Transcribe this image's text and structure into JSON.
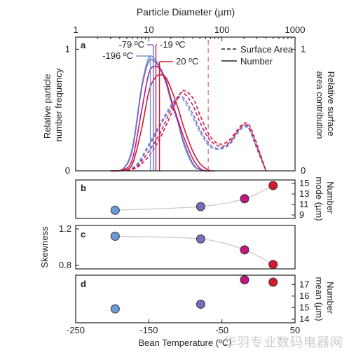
{
  "watermark": "华羽专业数码电器网",
  "chart_data": [
    {
      "type": "line",
      "panel_label": "a",
      "title": "",
      "top_axis": {
        "label": "Particle Diameter (µm)",
        "scale": "log",
        "range": [
          1,
          1000
        ],
        "ticks": [
          1,
          10,
          100,
          1000
        ],
        "tick_labels": [
          "1",
          "10",
          "100",
          "1000"
        ]
      },
      "left_axis": {
        "label_lines": [
          "Relative particle",
          "number frequency"
        ],
        "range": [
          0,
          1.1
        ],
        "ticks": [
          0,
          1
        ],
        "tick_labels": [
          "0",
          "1"
        ]
      },
      "right_axis": {
        "label_lines": [
          "Relative surface",
          "area contribution"
        ],
        "tick_labels": [
          "1",
          "0"
        ]
      },
      "legend": {
        "position": "top-right",
        "entries": [
          {
            "label": "Surface Area",
            "style": "dashed"
          },
          {
            "label": "Number",
            "style": "solid"
          }
        ]
      },
      "mode_markers": [
        {
          "label": "-79 ºC",
          "diameter": 11.5,
          "color": "#7b6bb8"
        },
        {
          "label": "-196 ºC",
          "diameter": 10.5,
          "color": "#6a9ad6"
        },
        {
          "label": "-19 ºC",
          "diameter": 12.5,
          "color": "#c0187e"
        },
        {
          "label": "20 ºC",
          "diameter": 14.0,
          "color": "#d41a2a"
        }
      ],
      "reference_line": {
        "diameter": 65,
        "style": "dashed",
        "color": "#e06aa0"
      },
      "series": [
        {
          "kind": "number",
          "color": "#6a9ad6",
          "x": [
            3,
            4.5,
            6,
            8,
            10,
            12,
            14,
            17,
            20,
            25,
            30,
            40,
            50,
            60,
            70
          ],
          "y": [
            0,
            0.02,
            0.2,
            0.7,
            0.93,
            0.92,
            0.86,
            0.75,
            0.6,
            0.4,
            0.22,
            0.05,
            0.01,
            0,
            0
          ]
        },
        {
          "kind": "number",
          "color": "#7b6bb8",
          "x": [
            3,
            4.5,
            6,
            8,
            10,
            12,
            14,
            17,
            20,
            25,
            30,
            40,
            50,
            60,
            70
          ],
          "y": [
            0,
            0.02,
            0.18,
            0.68,
            0.9,
            0.9,
            0.85,
            0.73,
            0.58,
            0.4,
            0.24,
            0.06,
            0.01,
            0,
            0
          ]
        },
        {
          "kind": "number",
          "color": "#c0187e",
          "x": [
            3,
            4.5,
            6,
            8,
            10,
            12,
            14,
            17,
            20,
            25,
            30,
            40,
            50,
            60,
            70
          ],
          "y": [
            0,
            0.01,
            0.1,
            0.5,
            0.8,
            0.86,
            0.84,
            0.75,
            0.6,
            0.42,
            0.28,
            0.1,
            0.02,
            0,
            0
          ]
        },
        {
          "kind": "number",
          "color": "#d41a2a",
          "x": [
            3,
            4.5,
            6,
            8,
            10,
            12,
            14,
            17,
            20,
            25,
            30,
            40,
            50,
            60,
            70,
            80
          ],
          "y": [
            0,
            0.005,
            0.06,
            0.35,
            0.65,
            0.76,
            0.79,
            0.77,
            0.68,
            0.52,
            0.36,
            0.16,
            0.06,
            0.02,
            0,
            0
          ]
        },
        {
          "kind": "surface",
          "color": "#6a9ad6",
          "x": [
            5,
            7,
            10,
            14,
            20,
            25,
            30,
            40,
            50,
            65,
            80,
            100,
            130,
            160,
            200,
            240,
            300,
            400
          ],
          "y": [
            0,
            0.06,
            0.22,
            0.38,
            0.54,
            0.6,
            0.58,
            0.44,
            0.32,
            0.21,
            0.18,
            0.18,
            0.22,
            0.3,
            0.36,
            0.33,
            0.18,
            0
          ]
        },
        {
          "kind": "surface",
          "color": "#7b6bb8",
          "x": [
            5,
            7,
            10,
            14,
            20,
            25,
            30,
            40,
            50,
            65,
            80,
            100,
            130,
            160,
            200,
            240,
            300,
            400
          ],
          "y": [
            0,
            0.05,
            0.2,
            0.36,
            0.52,
            0.6,
            0.6,
            0.47,
            0.34,
            0.23,
            0.19,
            0.19,
            0.23,
            0.31,
            0.37,
            0.34,
            0.19,
            0
          ]
        },
        {
          "kind": "surface",
          "color": "#c0187e",
          "x": [
            5,
            7,
            10,
            14,
            20,
            25,
            30,
            40,
            50,
            65,
            80,
            100,
            130,
            160,
            200,
            240,
            300,
            400
          ],
          "y": [
            0,
            0.04,
            0.16,
            0.3,
            0.5,
            0.61,
            0.64,
            0.54,
            0.4,
            0.27,
            0.22,
            0.2,
            0.24,
            0.32,
            0.38,
            0.35,
            0.2,
            0
          ]
        },
        {
          "kind": "surface",
          "color": "#d41a2a",
          "x": [
            5,
            7,
            10,
            14,
            20,
            25,
            30,
            40,
            50,
            65,
            80,
            100,
            130,
            160,
            200,
            240,
            300,
            400
          ],
          "y": [
            0,
            0.03,
            0.12,
            0.26,
            0.46,
            0.6,
            0.66,
            0.6,
            0.46,
            0.31,
            0.24,
            0.22,
            0.26,
            0.33,
            0.39,
            0.37,
            0.22,
            0
          ]
        }
      ]
    },
    {
      "type": "scatter",
      "panel_label": "b",
      "x_axis": {
        "range": [
          -250,
          50
        ]
      },
      "right_axis": {
        "label_lines": [
          "Number",
          "mode (µm)"
        ],
        "range": [
          9,
          15
        ],
        "ticks": [
          9,
          11,
          13,
          15
        ],
        "tick_labels": [
          "9",
          "11",
          "13",
          "15"
        ]
      },
      "points": [
        {
          "x": -196,
          "y": 9.9,
          "color": "#6a9ad6"
        },
        {
          "x": -79,
          "y": 10.6,
          "color": "#7b6bb8"
        },
        {
          "x": -19,
          "y": 12.1,
          "color": "#c0187e"
        },
        {
          "x": 20,
          "y": 14.6,
          "color": "#d41a2a"
        }
      ]
    },
    {
      "type": "scatter",
      "panel_label": "c",
      "x_axis": {
        "range": [
          -250,
          50
        ]
      },
      "left_axis": {
        "label": "Skewness",
        "range": [
          0.8,
          1.2
        ],
        "ticks": [
          0.8,
          1.2
        ],
        "tick_labels": [
          "0.8",
          "1.2"
        ]
      },
      "points": [
        {
          "x": -196,
          "y": 1.12,
          "color": "#6a9ad6"
        },
        {
          "x": -79,
          "y": 1.09,
          "color": "#7b6bb8"
        },
        {
          "x": -19,
          "y": 0.97,
          "color": "#c0187e"
        },
        {
          "x": 20,
          "y": 0.81,
          "color": "#d41a2a"
        }
      ]
    },
    {
      "type": "scatter",
      "panel_label": "d",
      "x_axis": {
        "label": "Bean Temperature (ºC)",
        "range": [
          -250,
          50
        ],
        "ticks": [
          -250,
          -150,
          -50,
          50
        ],
        "tick_labels": [
          "-250",
          "-150",
          "-50",
          "50"
        ]
      },
      "right_axis": {
        "label_lines": [
          "Number",
          "mean (µm)"
        ],
        "range": [
          14,
          17.5
        ],
        "ticks": [
          14,
          15,
          16,
          17
        ],
        "tick_labels": [
          "14",
          "15",
          "16",
          "17"
        ]
      },
      "points": [
        {
          "x": -196,
          "y": 14.9,
          "color": "#6a9ad6"
        },
        {
          "x": -79,
          "y": 15.3,
          "color": "#7b6bb8"
        },
        {
          "x": -19,
          "y": 17.4,
          "color": "#c0187e"
        },
        {
          "x": 20,
          "y": 17.2,
          "color": "#d41a2a"
        }
      ]
    }
  ]
}
